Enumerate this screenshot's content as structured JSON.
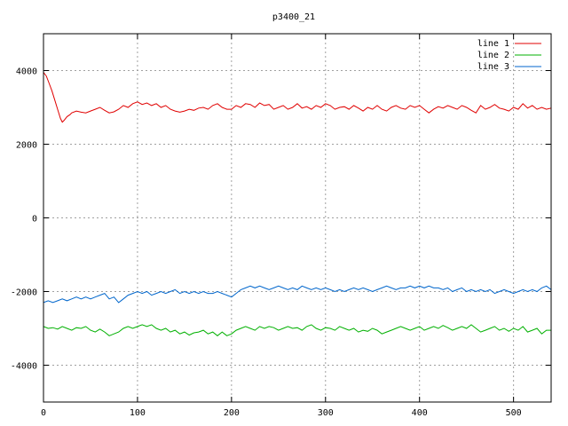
{
  "chart_data": {
    "type": "line",
    "title": "p3400_21",
    "xlabel": "",
    "ylabel": "",
    "xlim": [
      0,
      540
    ],
    "ylim": [
      -5000,
      5000
    ],
    "xticks": [
      0,
      100,
      200,
      300,
      400,
      500
    ],
    "yticks": [
      -4000,
      -2000,
      0,
      2000,
      4000
    ],
    "grid": true,
    "legend_position": "top-right",
    "series": [
      {
        "name": "line 1",
        "color": "#e00000",
        "x": [
          0,
          3,
          6,
          9,
          12,
          15,
          18,
          20,
          22,
          25,
          28,
          30,
          35,
          40,
          45,
          50,
          55,
          60,
          65,
          70,
          75,
          80,
          85,
          90,
          95,
          100,
          105,
          110,
          115,
          120,
          125,
          130,
          135,
          140,
          145,
          150,
          155,
          160,
          165,
          170,
          175,
          180,
          185,
          190,
          195,
          200,
          205,
          210,
          215,
          220,
          225,
          230,
          235,
          240,
          245,
          250,
          255,
          260,
          265,
          270,
          275,
          280,
          285,
          290,
          295,
          300,
          305,
          310,
          315,
          320,
          325,
          330,
          335,
          340,
          345,
          350,
          355,
          360,
          365,
          370,
          375,
          380,
          385,
          390,
          395,
          400,
          405,
          410,
          415,
          420,
          425,
          430,
          435,
          440,
          445,
          450,
          455,
          460,
          465,
          470,
          475,
          480,
          485,
          490,
          495,
          500,
          505,
          510,
          515,
          520,
          525,
          530,
          535,
          540
        ],
        "values": [
          3950,
          3850,
          3650,
          3450,
          3200,
          2950,
          2700,
          2600,
          2650,
          2750,
          2800,
          2850,
          2900,
          2870,
          2850,
          2900,
          2950,
          3000,
          2920,
          2850,
          2880,
          2950,
          3050,
          3000,
          3100,
          3150,
          3080,
          3120,
          3050,
          3100,
          3000,
          3050,
          2950,
          2900,
          2870,
          2900,
          2950,
          2920,
          2980,
          3000,
          2950,
          3050,
          3100,
          3000,
          2950,
          2950,
          3050,
          3000,
          3100,
          3080,
          3000,
          3120,
          3050,
          3080,
          2950,
          3000,
          3050,
          2950,
          3000,
          3100,
          2980,
          3020,
          2950,
          3050,
          3000,
          3100,
          3050,
          2950,
          3000,
          3020,
          2950,
          3050,
          2980,
          2900,
          3000,
          2950,
          3050,
          2950,
          2900,
          3000,
          3050,
          2980,
          2950,
          3050,
          3000,
          3050,
          2950,
          2850,
          2950,
          3020,
          2980,
          3050,
          3000,
          2950,
          3050,
          3000,
          2920,
          2850,
          3050,
          2950,
          3000,
          3080,
          2980,
          2950,
          2900,
          3000,
          2950,
          3100,
          2980,
          3050,
          2950,
          3000,
          2950,
          2980
        ]
      },
      {
        "name": "line 2",
        "color": "#00b000",
        "x": [
          0,
          5,
          10,
          15,
          20,
          25,
          30,
          35,
          40,
          45,
          50,
          55,
          60,
          65,
          70,
          75,
          80,
          85,
          90,
          95,
          100,
          105,
          110,
          115,
          120,
          125,
          130,
          135,
          140,
          145,
          150,
          155,
          160,
          165,
          170,
          175,
          180,
          185,
          190,
          195,
          200,
          205,
          210,
          215,
          220,
          225,
          230,
          235,
          240,
          245,
          250,
          255,
          260,
          265,
          270,
          275,
          280,
          285,
          290,
          295,
          300,
          305,
          310,
          315,
          320,
          325,
          330,
          335,
          340,
          345,
          350,
          355,
          360,
          365,
          370,
          375,
          380,
          385,
          390,
          395,
          400,
          405,
          410,
          415,
          420,
          425,
          430,
          435,
          440,
          445,
          450,
          455,
          460,
          465,
          470,
          475,
          480,
          485,
          490,
          495,
          500,
          505,
          510,
          515,
          520,
          525,
          530,
          535,
          540
        ],
        "values": [
          -2950,
          -3000,
          -2980,
          -3020,
          -2950,
          -3000,
          -3050,
          -2980,
          -3000,
          -2950,
          -3050,
          -3100,
          -3020,
          -3100,
          -3200,
          -3150,
          -3100,
          -3000,
          -2950,
          -3000,
          -2950,
          -2900,
          -2950,
          -2900,
          -3000,
          -3050,
          -3000,
          -3100,
          -3050,
          -3150,
          -3100,
          -3180,
          -3120,
          -3100,
          -3050,
          -3150,
          -3100,
          -3200,
          -3100,
          -3200,
          -3150,
          -3050,
          -3000,
          -2950,
          -3000,
          -3050,
          -2950,
          -3000,
          -2950,
          -2980,
          -3050,
          -3000,
          -2950,
          -3000,
          -2980,
          -3050,
          -2950,
          -2900,
          -3000,
          -3050,
          -2980,
          -3000,
          -3050,
          -2950,
          -3000,
          -3050,
          -3000,
          -3100,
          -3050,
          -3080,
          -3000,
          -3050,
          -3150,
          -3100,
          -3050,
          -3000,
          -2950,
          -3000,
          -3050,
          -3000,
          -2950,
          -3050,
          -3000,
          -2950,
          -3000,
          -2920,
          -2980,
          -3050,
          -3000,
          -2950,
          -3000,
          -2900,
          -3000,
          -3100,
          -3050,
          -3000,
          -2950,
          -3050,
          -3000,
          -3080,
          -3000,
          -3050,
          -2950,
          -3100,
          -3050,
          -3000,
          -3150,
          -3050,
          -3050
        ]
      },
      {
        "name": "line 3",
        "color": "#0066cc",
        "x": [
          0,
          5,
          10,
          15,
          20,
          25,
          30,
          35,
          40,
          45,
          50,
          55,
          60,
          65,
          70,
          75,
          80,
          85,
          90,
          95,
          100,
          105,
          110,
          115,
          120,
          125,
          130,
          135,
          140,
          145,
          150,
          155,
          160,
          165,
          170,
          175,
          180,
          185,
          190,
          195,
          200,
          205,
          210,
          215,
          220,
          225,
          230,
          235,
          240,
          245,
          250,
          255,
          260,
          265,
          270,
          275,
          280,
          285,
          290,
          295,
          300,
          305,
          310,
          315,
          320,
          325,
          330,
          335,
          340,
          345,
          350,
          355,
          360,
          365,
          370,
          375,
          380,
          385,
          390,
          395,
          400,
          405,
          410,
          415,
          420,
          425,
          430,
          435,
          440,
          445,
          450,
          455,
          460,
          465,
          470,
          475,
          480,
          485,
          490,
          495,
          500,
          505,
          510,
          515,
          520,
          525,
          530,
          535,
          540
        ],
        "values": [
          -2300,
          -2250,
          -2300,
          -2250,
          -2200,
          -2250,
          -2200,
          -2150,
          -2200,
          -2150,
          -2200,
          -2150,
          -2100,
          -2050,
          -2200,
          -2150,
          -2300,
          -2200,
          -2100,
          -2050,
          -2000,
          -2050,
          -2000,
          -2100,
          -2050,
          -2000,
          -2050,
          -2000,
          -1950,
          -2050,
          -2000,
          -2050,
          -2000,
          -2050,
          -2000,
          -2050,
          -2050,
          -2000,
          -2050,
          -2100,
          -2150,
          -2050,
          -1950,
          -1900,
          -1850,
          -1900,
          -1850,
          -1900,
          -1950,
          -1900,
          -1850,
          -1900,
          -1950,
          -1900,
          -1950,
          -1850,
          -1900,
          -1950,
          -1900,
          -1950,
          -1900,
          -1950,
          -2000,
          -1950,
          -2000,
          -1950,
          -1900,
          -1950,
          -1900,
          -1950,
          -2000,
          -1950,
          -1900,
          -1850,
          -1900,
          -1950,
          -1900,
          -1900,
          -1850,
          -1900,
          -1850,
          -1900,
          -1850,
          -1900,
          -1900,
          -1950,
          -1900,
          -2000,
          -1950,
          -1900,
          -2000,
          -1950,
          -2000,
          -1950,
          -2000,
          -1950,
          -2050,
          -2000,
          -1950,
          -2000,
          -2050,
          -2000,
          -1950,
          -2000,
          -1950,
          -2000,
          -1900,
          -1850,
          -1950
        ]
      }
    ]
  }
}
